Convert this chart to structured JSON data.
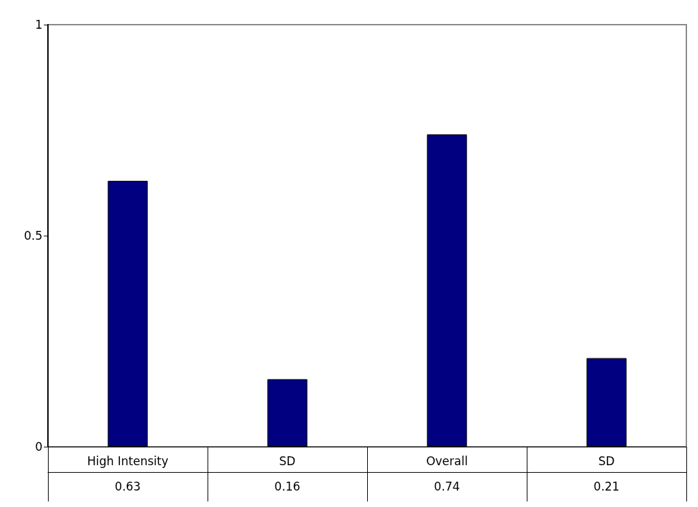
{
  "chart_data": {
    "type": "bar",
    "categories": [
      "High Intensity",
      "SD",
      "Overall",
      "SD"
    ],
    "values": [
      0.63,
      0.16,
      0.74,
      0.21
    ],
    "color": "#000080",
    "ylim": [
      0,
      1
    ],
    "yticks": [
      0,
      0.5,
      1
    ],
    "grid": false,
    "data_labels": true
  }
}
